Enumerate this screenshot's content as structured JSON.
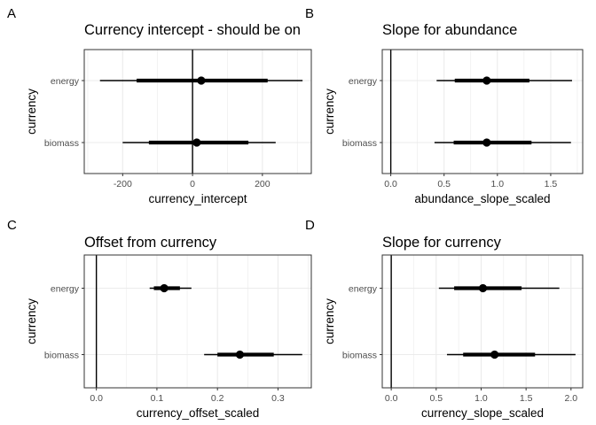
{
  "chart_data": [
    {
      "type": "interval",
      "panel_label": "A",
      "title": "Currency intercept - should be on",
      "xlabel": "currency_intercept",
      "ylabel": "currency",
      "categories": [
        "energy",
        "biomass"
      ],
      "xlim": [
        -310,
        340
      ],
      "xticks": [
        -200,
        0,
        200
      ],
      "xtick_labels": [
        "-200",
        "0",
        "200"
      ],
      "reference_line": 0,
      "grid": true,
      "points": [
        {
          "category": "energy",
          "median": 25,
          "inner": [
            -160,
            215
          ],
          "outer": [
            -265,
            315
          ]
        },
        {
          "category": "biomass",
          "median": 12,
          "inner": [
            -125,
            160
          ],
          "outer": [
            -200,
            238
          ]
        }
      ]
    },
    {
      "type": "interval",
      "panel_label": "B",
      "title": "Slope for abundance",
      "xlabel": "abundance_slope_scaled",
      "ylabel": "currency",
      "categories": [
        "energy",
        "biomass"
      ],
      "xlim": [
        -0.08,
        1.8
      ],
      "xticks": [
        0.0,
        0.5,
        1.0,
        1.5
      ],
      "xtick_labels": [
        "0.0",
        "0.5",
        "1.0",
        "1.5"
      ],
      "reference_line": 0,
      "grid": true,
      "points": [
        {
          "category": "energy",
          "median": 0.9,
          "inner": [
            0.6,
            1.3
          ],
          "outer": [
            0.43,
            1.7
          ]
        },
        {
          "category": "biomass",
          "median": 0.9,
          "inner": [
            0.59,
            1.32
          ],
          "outer": [
            0.41,
            1.69
          ]
        }
      ]
    },
    {
      "type": "interval",
      "panel_label": "C",
      "title": "Offset from currency",
      "xlabel": "currency_offset_scaled",
      "ylabel": "currency",
      "categories": [
        "energy",
        "biomass"
      ],
      "xlim": [
        -0.02,
        0.355
      ],
      "xticks": [
        0.0,
        0.1,
        0.2,
        0.3
      ],
      "xtick_labels": [
        "0.0",
        "0.1",
        "0.2",
        "0.3"
      ],
      "reference_line": 0,
      "grid": true,
      "points": [
        {
          "category": "energy",
          "median": 0.112,
          "inner": [
            0.095,
            0.138
          ],
          "outer": [
            0.088,
            0.157
          ]
        },
        {
          "category": "biomass",
          "median": 0.237,
          "inner": [
            0.2,
            0.293
          ],
          "outer": [
            0.178,
            0.34
          ]
        }
      ]
    },
    {
      "type": "interval",
      "panel_label": "D",
      "title": "Slope for currency",
      "xlabel": "currency_slope_scaled",
      "ylabel": "currency",
      "categories": [
        "energy",
        "biomass"
      ],
      "xlim": [
        -0.1,
        2.13
      ],
      "xticks": [
        0.0,
        0.5,
        1.0,
        1.5,
        2.0
      ],
      "xtick_labels": [
        "0.0",
        "0.5",
        "1.0",
        "1.5",
        "2.0"
      ],
      "reference_line": 0,
      "grid": true,
      "points": [
        {
          "category": "energy",
          "median": 1.02,
          "inner": [
            0.7,
            1.45
          ],
          "outer": [
            0.53,
            1.87
          ]
        },
        {
          "category": "biomass",
          "median": 1.15,
          "inner": [
            0.8,
            1.6
          ],
          "outer": [
            0.62,
            2.05
          ]
        }
      ]
    }
  ]
}
